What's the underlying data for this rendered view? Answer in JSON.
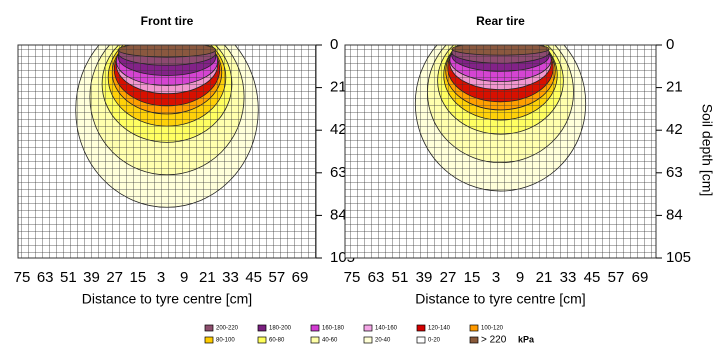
{
  "chart_data": [
    {
      "type": "contour",
      "title": "Front tire",
      "xlabel": "Distance to tyre centre [cm]",
      "categories": [
        "75",
        "63",
        "51",
        "39",
        "27",
        "15",
        "3",
        "9",
        "21",
        "33",
        "45",
        "57",
        "69"
      ],
      "ylim": [
        0,
        105
      ],
      "yticks": [
        0,
        21,
        42,
        63,
        84,
        105
      ],
      "contours": [
        {
          "name": "20-40",
          "depth": 80,
          "half_width": 45
        },
        {
          "name": "40-60",
          "depth": 64,
          "half_width": 38
        },
        {
          "name": "60-80",
          "depth": 48,
          "half_width": 32
        },
        {
          "name": "80-100",
          "depth": 40,
          "half_width": 29
        },
        {
          "name": "100-120",
          "depth": 34,
          "half_width": 27
        },
        {
          "name": "120-140",
          "depth": 30,
          "half_width": 26
        },
        {
          "name": "140-160",
          "depth": 24,
          "half_width": 25
        },
        {
          "name": "160-180",
          "depth": 20,
          "half_width": 25
        },
        {
          "name": "180-200",
          "depth": 15,
          "half_width": 24
        },
        {
          "name": "200-220",
          "depth": 10,
          "half_width": 24
        },
        {
          "name": "> 220",
          "depth": 6,
          "half_width": 24
        }
      ]
    },
    {
      "type": "contour",
      "title": "Rear tire",
      "xlabel": "Distance to tyre centre [cm]",
      "ylabel": "Soil depth [cm]",
      "categories": [
        "75",
        "63",
        "51",
        "39",
        "27",
        "15",
        "3",
        "9",
        "21",
        "33",
        "45",
        "57",
        "69"
      ],
      "ylim": [
        0,
        105
      ],
      "yticks": [
        0,
        21,
        42,
        63,
        84,
        105
      ],
      "contours": [
        {
          "name": "20-40",
          "depth": 72,
          "half_width": 42
        },
        {
          "name": "40-60",
          "depth": 58,
          "half_width": 36
        },
        {
          "name": "60-80",
          "depth": 44,
          "half_width": 31
        },
        {
          "name": "80-100",
          "depth": 37,
          "half_width": 28
        },
        {
          "name": "100-120",
          "depth": 32,
          "half_width": 27
        },
        {
          "name": "120-140",
          "depth": 28,
          "half_width": 26
        },
        {
          "name": "140-160",
          "depth": 22,
          "half_width": 25
        },
        {
          "name": "160-180",
          "depth": 18,
          "half_width": 25
        },
        {
          "name": "180-200",
          "depth": 13,
          "half_width": 24
        },
        {
          "name": "200-220",
          "depth": 9,
          "half_width": 24
        },
        {
          "name": "> 220",
          "depth": 5,
          "half_width": 24
        }
      ]
    }
  ],
  "legend": {
    "unit": "kPa",
    "items": [
      {
        "name": "200-220",
        "color": "#8e4f6e"
      },
      {
        "name": "180-200",
        "color": "#7a1f80"
      },
      {
        "name": "160-180",
        "color": "#d23bd2"
      },
      {
        "name": "140-160",
        "color": "#f4a6e6"
      },
      {
        "name": "120-140",
        "color": "#d40000"
      },
      {
        "name": "100-120",
        "color": "#ff9a00"
      },
      {
        "name": "80-100",
        "color": "#ffcc00"
      },
      {
        "name": "60-80",
        "color": "#ffff5a"
      },
      {
        "name": "40-60",
        "color": "#ffffa8"
      },
      {
        "name": "20-40",
        "color": "#ffffd6"
      },
      {
        "name": "0-20",
        "color": "#ffffff"
      },
      {
        "name": "> 220",
        "color": "#8a5a3a"
      }
    ]
  }
}
